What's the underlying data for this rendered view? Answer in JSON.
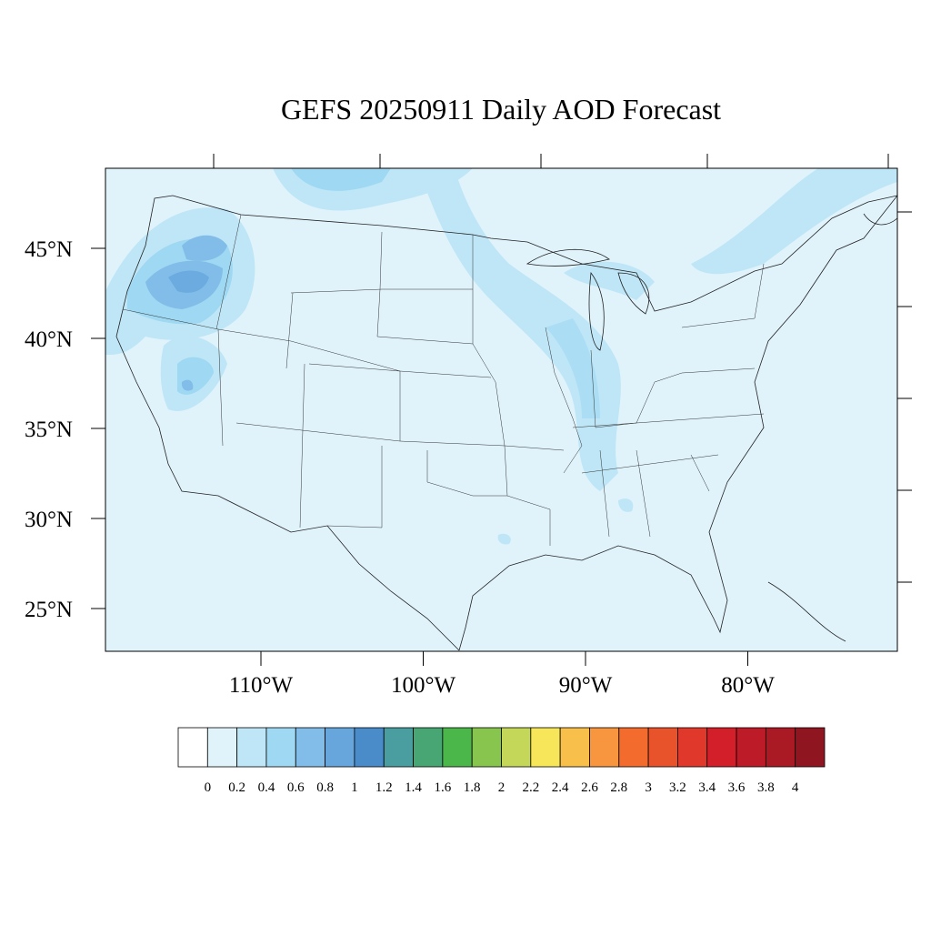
{
  "header": {
    "title": "GEFS 20250911 Daily AOD Forecast"
  },
  "map": {
    "lat_ticks": [
      {
        "value": 45,
        "label": "45°N"
      },
      {
        "value": 40,
        "label": "40°N"
      },
      {
        "value": 35,
        "label": "35°N"
      },
      {
        "value": 30,
        "label": "30°N"
      },
      {
        "value": 25,
        "label": "25°N"
      }
    ],
    "lon_ticks": [
      {
        "value": 110,
        "label": "110°W"
      },
      {
        "value": 100,
        "label": "100°W"
      },
      {
        "value": 90,
        "label": "90°W"
      },
      {
        "value": 80,
        "label": "80°W"
      }
    ]
  },
  "colorbar": {
    "labels": [
      0,
      0.2,
      0.4,
      0.6,
      0.8,
      1,
      1.2,
      1.4,
      1.6,
      1.8,
      2,
      2.2,
      2.4,
      2.6,
      2.8,
      3,
      3.2,
      3.4,
      3.6,
      3.8,
      4
    ],
    "colors": [
      "#ffffff",
      "#e0f3fb",
      "#bfe6f7",
      "#9fd8f2",
      "#81bde8",
      "#67a6dc",
      "#4a8cc9",
      "#4a9ea0",
      "#47a673",
      "#4bb64a",
      "#87c54e",
      "#c4d758",
      "#f7e55a",
      "#f8bf4a",
      "#f7963e",
      "#f36b2d",
      "#e9532b",
      "#e0382a",
      "#d21f2a",
      "#bd1b27",
      "#a91a25",
      "#8f1620"
    ]
  }
}
